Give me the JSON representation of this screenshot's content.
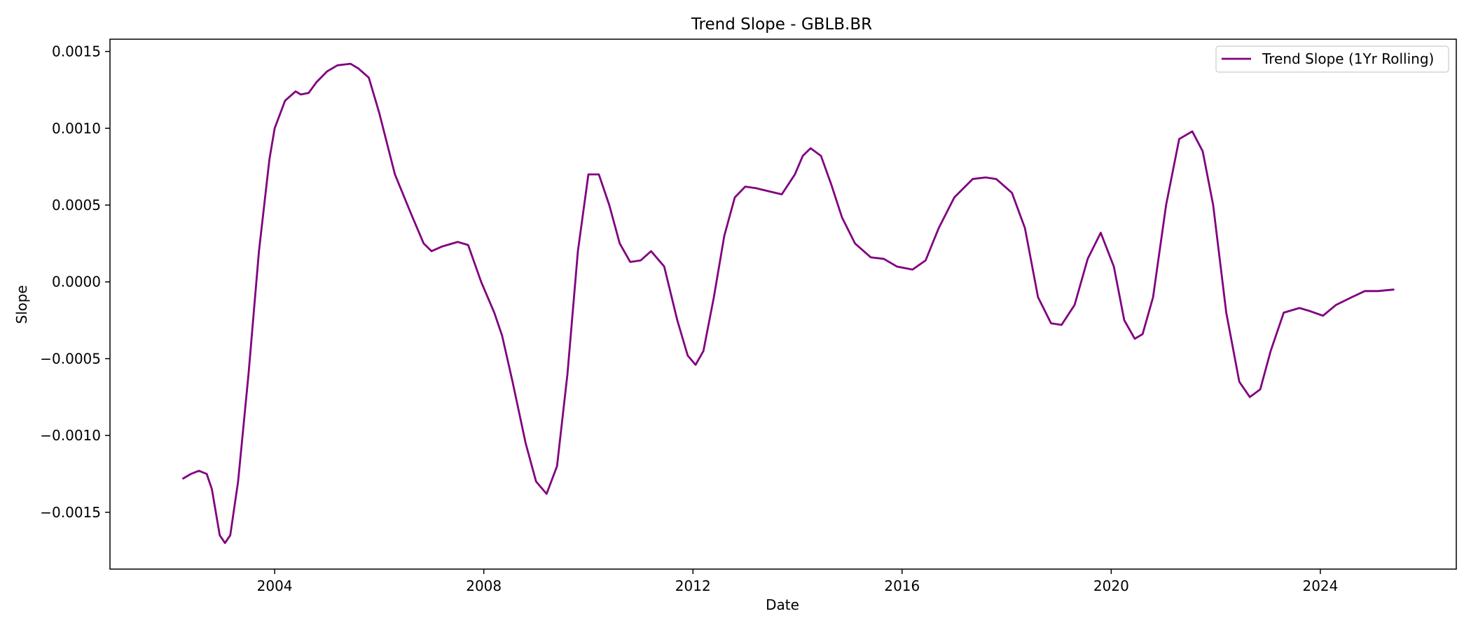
{
  "chart_data": {
    "type": "line",
    "title": "Trend Slope - GBLB.BR",
    "xlabel": "Date",
    "ylabel": "Slope",
    "x_ticks": [
      2004,
      2008,
      2012,
      2016,
      2020,
      2024
    ],
    "x_tick_labels": [
      "2004",
      "2008",
      "2012",
      "2016",
      "2020",
      "2024"
    ],
    "y_ticks": [
      0.0015,
      0.001,
      0.0005,
      0.0,
      -0.0005,
      -0.001,
      -0.0015
    ],
    "y_tick_labels": [
      "0.0015",
      "0.0010",
      "0.0005",
      "0.0000",
      "−0.0005",
      "−0.0010",
      "−0.0015"
    ],
    "xlim": [
      2000.85,
      2026.6
    ],
    "ylim": [
      -0.00187,
      0.00158
    ],
    "grid": false,
    "legend_position": "top-right",
    "series": [
      {
        "name": "Trend Slope (1Yr Rolling)",
        "color": "#800080",
        "x": [
          2002.25,
          2002.4,
          2002.55,
          2002.7,
          2002.8,
          2002.95,
          2003.05,
          2003.15,
          2003.3,
          2003.5,
          2003.7,
          2003.9,
          2004.0,
          2004.2,
          2004.4,
          2004.5,
          2004.65,
          2004.8,
          2005.0,
          2005.2,
          2005.45,
          2005.6,
          2005.8,
          2006.0,
          2006.3,
          2006.6,
          2006.85,
          2007.0,
          2007.2,
          2007.5,
          2007.7,
          2007.95,
          2008.2,
          2008.35,
          2008.55,
          2008.8,
          2009.0,
          2009.2,
          2009.4,
          2009.6,
          2009.8,
          2010.0,
          2010.2,
          2010.4,
          2010.6,
          2010.8,
          2011.0,
          2011.2,
          2011.45,
          2011.7,
          2011.9,
          2012.05,
          2012.2,
          2012.4,
          2012.6,
          2012.8,
          2013.0,
          2013.2,
          2013.45,
          2013.7,
          2013.95,
          2014.1,
          2014.25,
          2014.45,
          2014.65,
          2014.85,
          2015.1,
          2015.4,
          2015.65,
          2015.9,
          2016.2,
          2016.45,
          2016.7,
          2017.0,
          2017.35,
          2017.6,
          2017.8,
          2018.1,
          2018.35,
          2018.6,
          2018.85,
          2019.05,
          2019.3,
          2019.55,
          2019.8,
          2020.05,
          2020.25,
          2020.45,
          2020.6,
          2020.8,
          2021.05,
          2021.3,
          2021.55,
          2021.75,
          2021.95,
          2022.2,
          2022.45,
          2022.65,
          2022.85,
          2023.05,
          2023.3,
          2023.6,
          2023.8,
          2024.05,
          2024.3,
          2024.6,
          2024.85,
          2025.1,
          2025.4
        ],
        "y": [
          -0.00128,
          -0.00125,
          -0.00123,
          -0.00125,
          -0.00135,
          -0.00165,
          -0.0017,
          -0.00165,
          -0.0013,
          -0.0006,
          0.0002,
          0.0008,
          0.001,
          0.00118,
          0.00124,
          0.00122,
          0.00123,
          0.0013,
          0.00137,
          0.00141,
          0.00142,
          0.00139,
          0.00133,
          0.0011,
          0.0007,
          0.00045,
          0.00025,
          0.0002,
          0.00023,
          0.00026,
          0.00024,
          0.0,
          -0.0002,
          -0.00035,
          -0.00065,
          -0.00105,
          -0.0013,
          -0.00138,
          -0.0012,
          -0.0006,
          0.0002,
          0.0007,
          0.0007,
          0.0005,
          0.00025,
          0.00013,
          0.00014,
          0.0002,
          0.0001,
          -0.00025,
          -0.00048,
          -0.00054,
          -0.00045,
          -0.0001,
          0.0003,
          0.00055,
          0.00062,
          0.00061,
          0.00059,
          0.00057,
          0.0007,
          0.00082,
          0.00087,
          0.00082,
          0.00063,
          0.00042,
          0.00025,
          0.00016,
          0.00015,
          0.0001,
          8e-05,
          0.00014,
          0.00035,
          0.00055,
          0.00067,
          0.00068,
          0.00067,
          0.00058,
          0.00035,
          -0.0001,
          -0.00027,
          -0.00028,
          -0.00015,
          0.00015,
          0.00032,
          0.0001,
          -0.00025,
          -0.00037,
          -0.00034,
          -0.0001,
          0.0005,
          0.00093,
          0.00098,
          0.00085,
          0.0005,
          -0.0002,
          -0.00065,
          -0.00075,
          -0.0007,
          -0.00045,
          -0.0002,
          -0.00017,
          -0.00019,
          -0.00022,
          -0.00015,
          -0.0001,
          -6e-05,
          -6e-05,
          -5e-05
        ]
      }
    ]
  }
}
